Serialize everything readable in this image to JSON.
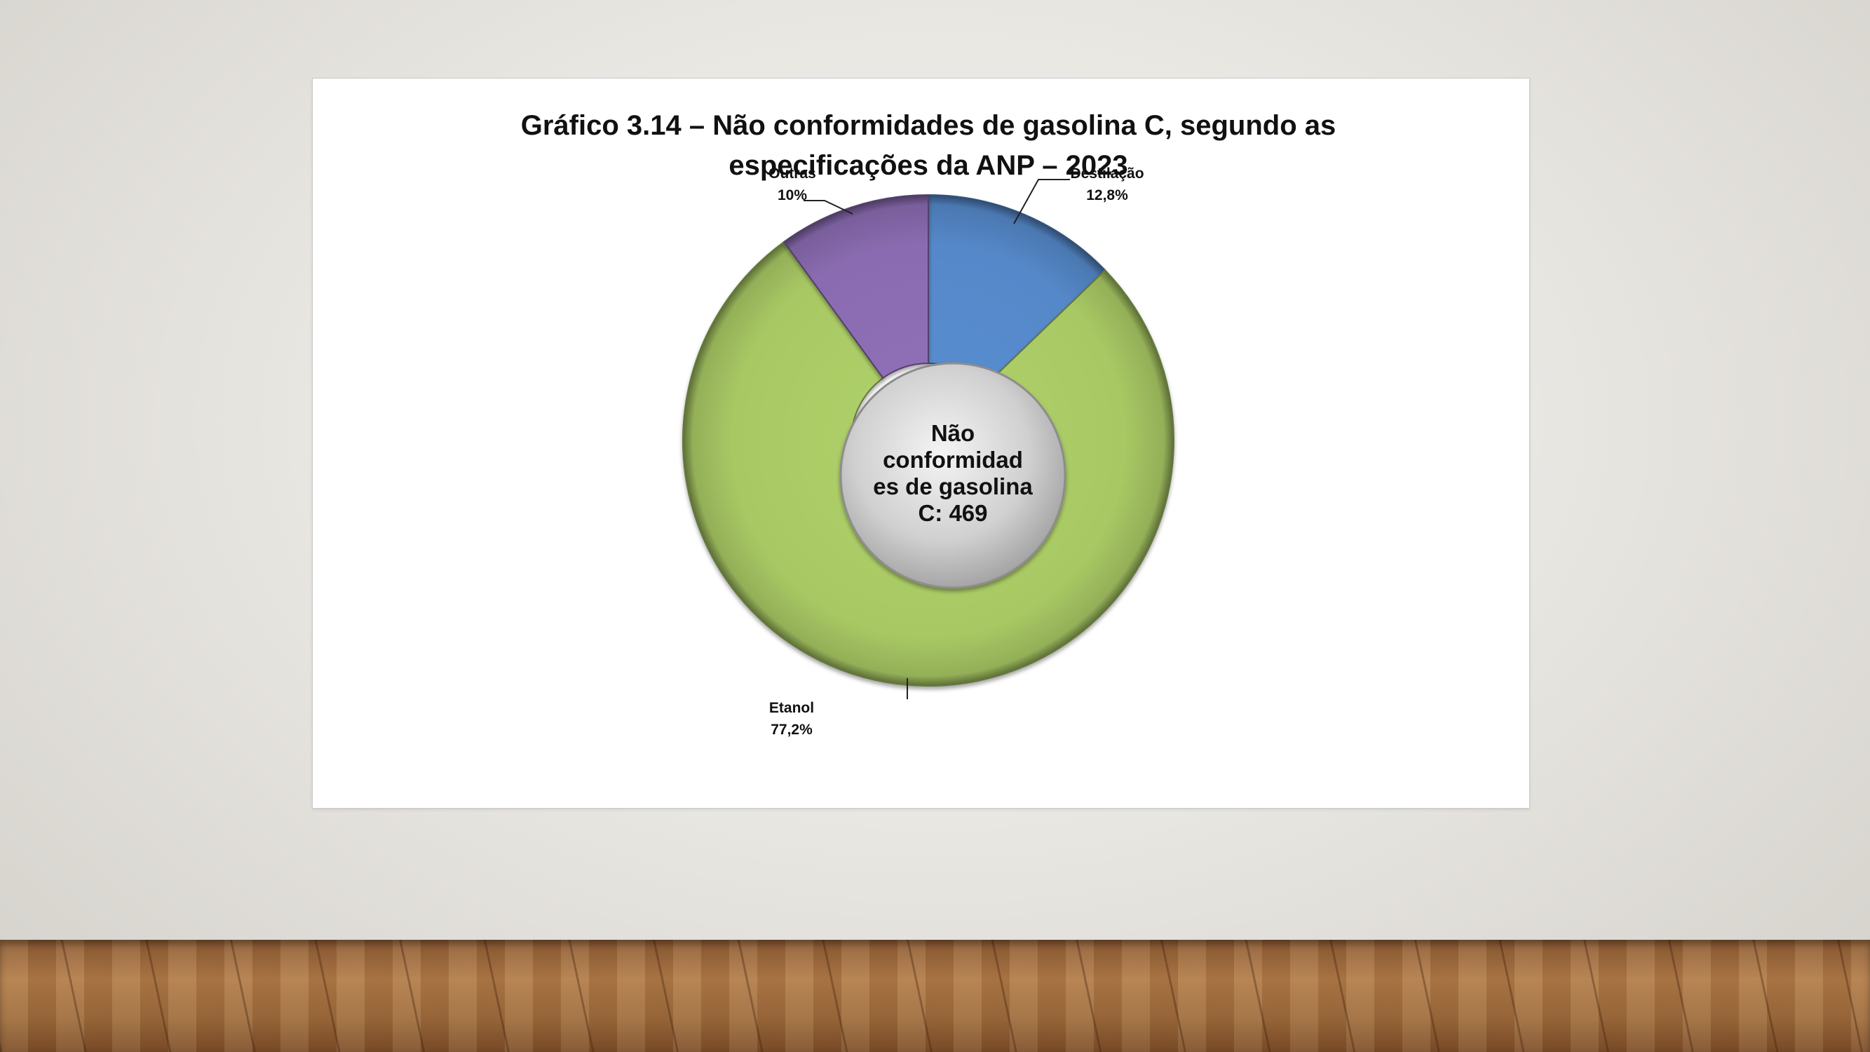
{
  "chart_data": {
    "type": "pie",
    "variant": "donut",
    "title": "Gráfico 3.14 – Não conformidades de gasolina C, segundo as especificações da ANP – 2023",
    "title_lines": [
      "Gráfico 3.14 – Não conformidades de gasolina C, segundo as",
      "especificações da ANP – 2023"
    ],
    "center_label": "Não conformidades de gasolina C: 469",
    "center_lines": [
      "Não",
      "conformidad",
      "es de gasolina",
      "C: 469"
    ],
    "total": 469,
    "unit": "%",
    "slices": [
      {
        "name": "Destilação",
        "value": 12.8,
        "label": "12,8%",
        "color": "#5588c9"
      },
      {
        "name": "Etanol",
        "value": 77.2,
        "label": "77,2%",
        "color": "#a8c864"
      },
      {
        "name": "Outras",
        "value": 10.0,
        "label": "10%",
        "color": "#8a6bb0"
      }
    ]
  }
}
